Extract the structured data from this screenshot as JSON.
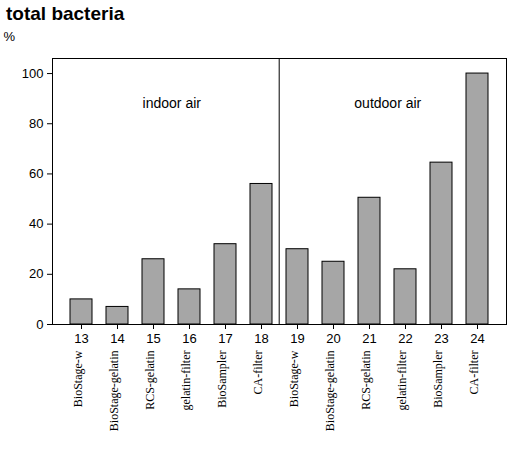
{
  "chart_data": {
    "type": "bar",
    "title": "total bacteria",
    "ylabel": "%",
    "categories": [
      "13",
      "14",
      "15",
      "16",
      "17",
      "18",
      "19",
      "20",
      "21",
      "22",
      "23",
      "24"
    ],
    "category_names": [
      "BioStage-w",
      "BioStage-gelatin",
      "RCS-gelatin",
      "gelatin-filter",
      "BioSampler",
      "CA-filter",
      "BioStage-w",
      "BioStage-gelatin",
      "RCS-gelatin",
      "gelatin-filter",
      "BioSampler",
      "CA-filter"
    ],
    "values": [
      10,
      7,
      26,
      14,
      32,
      56,
      30,
      25,
      50.5,
      22,
      64.5,
      100
    ],
    "color": "#a6a6a6",
    "ylim": [
      0,
      106
    ],
    "yticks": [
      0,
      20,
      40,
      60,
      80,
      100
    ],
    "grid": false,
    "annotations": [
      {
        "text": "indoor air",
        "categories": [
          "13",
          "14",
          "15",
          "16",
          "17",
          "18"
        ]
      },
      {
        "text": "outdoor air",
        "categories": [
          "19",
          "20",
          "21",
          "22",
          "23",
          "24"
        ]
      }
    ]
  }
}
